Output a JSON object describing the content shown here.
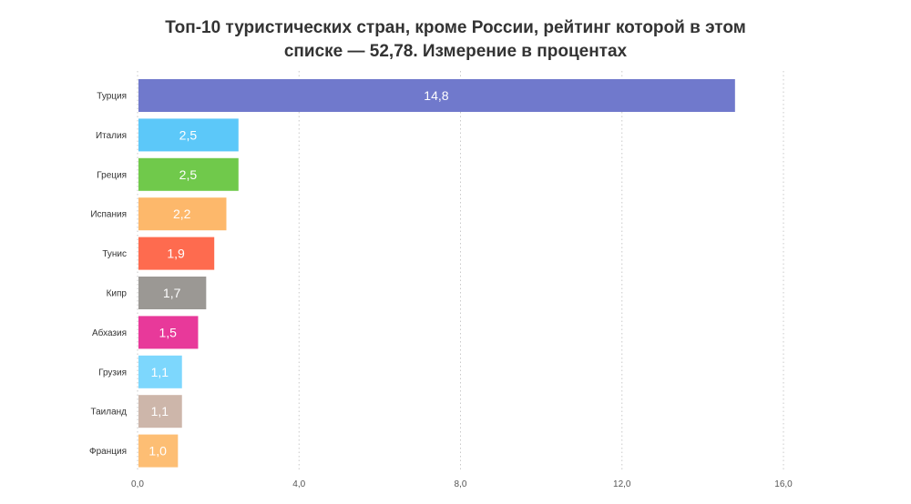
{
  "title_lines": [
    "Топ-10 туристических стран, кроме России, рейтинг которой в этом",
    "списке — 52,78. Измерение в процентах"
  ],
  "chart_data": {
    "type": "bar",
    "orientation": "horizontal",
    "title": "Топ-10 туристических стран, кроме России, рейтинг которой в этом списке — 52,78. Измерение в процентах",
    "categories": [
      "Турция",
      "Италия",
      "Греция",
      "Испания",
      "Тунис",
      "Кипр",
      "Абхазия",
      "Грузия",
      "Таиланд",
      "Франция"
    ],
    "values": [
      14.8,
      2.5,
      2.5,
      2.2,
      1.9,
      1.7,
      1.5,
      1.1,
      1.1,
      1.0
    ],
    "value_labels": [
      "14,8",
      "2,5",
      "2,5",
      "2,2",
      "1,9",
      "1,7",
      "1,5",
      "1,1",
      "1,1",
      "1,0"
    ],
    "colors": [
      "#7079cc",
      "#5cc8f9",
      "#70c94b",
      "#fdb86b",
      "#fe6b4f",
      "#9b9894",
      "#e8399a",
      "#7dd7fd",
      "#cdb6aa",
      "#fdbe74"
    ],
    "xlim": [
      0,
      16
    ],
    "x_ticks": [
      0,
      4,
      8,
      12,
      16
    ],
    "x_tick_labels": [
      "0,0",
      "4,0",
      "8,0",
      "12,0",
      "16,0"
    ],
    "grid": "vertical dotted",
    "xlabel": "",
    "ylabel": ""
  }
}
